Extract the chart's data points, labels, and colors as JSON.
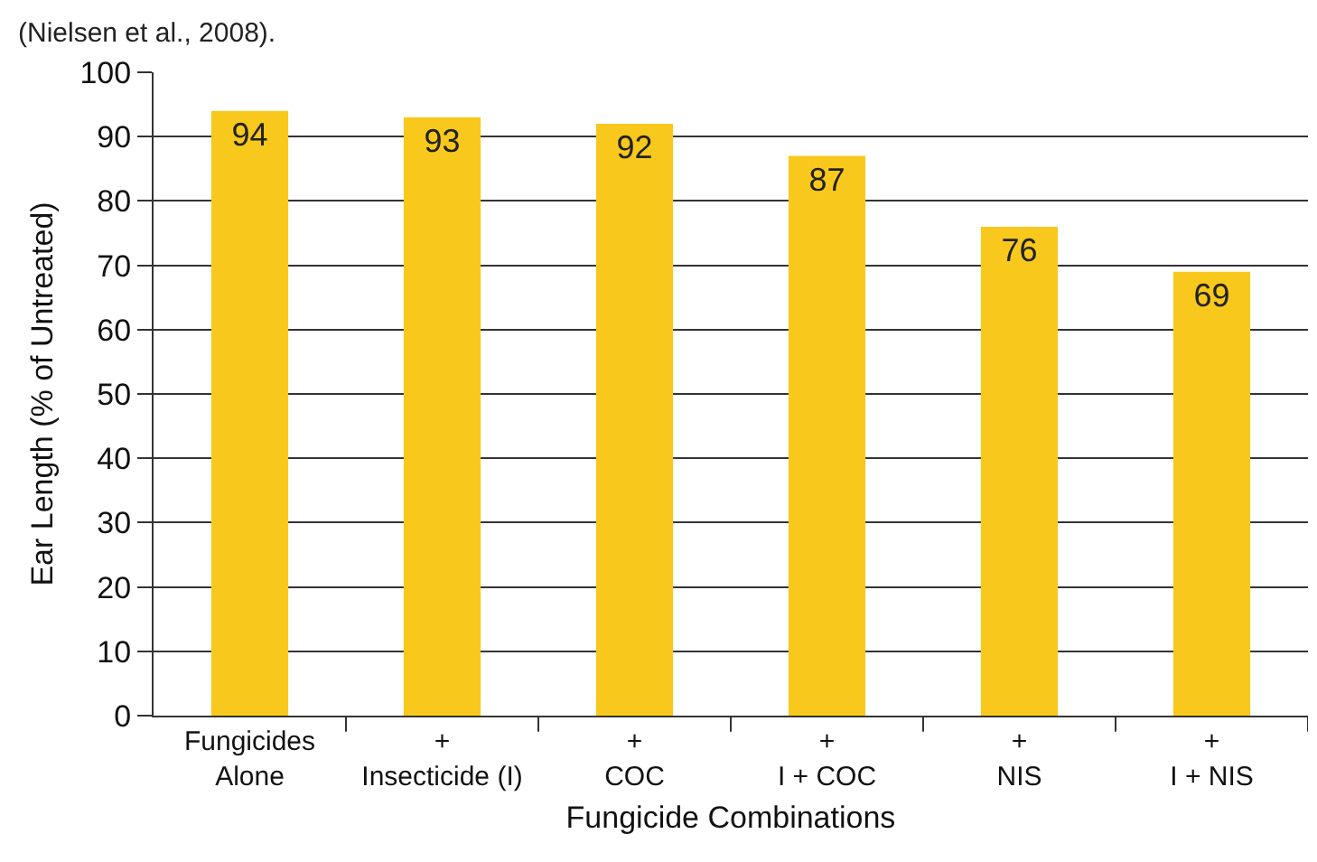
{
  "chart_data": {
    "type": "bar",
    "xlabel": "Fungicide Combinations",
    "ylabel": "Ear Length (% of Untreated)",
    "annotations": [
      "(Nielsen et al., 2008)."
    ],
    "categories": [
      "Fungicides\nAlone",
      "+\nInsecticide (I)",
      "+\nCOC",
      "+\nI + COC",
      "+\nNIS",
      "+\nI + NIS"
    ],
    "values": [
      94,
      93,
      92,
      87,
      76,
      69
    ],
    "color": "#f9c81c",
    "data_labels": true,
    "ylim": [
      0,
      100
    ],
    "yticks": [
      0,
      10,
      20,
      30,
      40,
      50,
      60,
      70,
      80,
      90,
      100
    ],
    "grid": "y"
  }
}
